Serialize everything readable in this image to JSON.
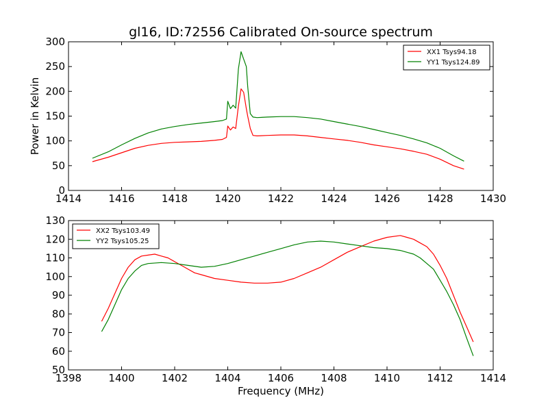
{
  "figure": {
    "title": "gl16, ID:72556 Calibrated On-source spectrum"
  },
  "colors": {
    "xx": "#ff0000",
    "yy": "#008000",
    "axes": "#000000",
    "background": "#ffffff"
  },
  "chart_data": [
    {
      "type": "line",
      "title": "gl16, ID:72556 Calibrated On-source spectrum",
      "xlabel": "",
      "ylabel": "Power in Kelvin",
      "xlim": [
        1414,
        1430
      ],
      "ylim": [
        0,
        300
      ],
      "xticks": [
        "1414",
        "1416",
        "1418",
        "1420",
        "1422",
        "1424",
        "1426",
        "1428",
        "1430"
      ],
      "yticks": [
        "0",
        "50",
        "100",
        "150",
        "200",
        "250",
        "300"
      ],
      "grid": false,
      "legend_position": "top-right",
      "series": [
        {
          "name": "XX1 Tsys94.18",
          "color": "#ff0000",
          "points": [
            [
              1414.9,
              58
            ],
            [
              1415.5,
              67
            ],
            [
              1416.0,
              76
            ],
            [
              1416.5,
              85
            ],
            [
              1417.0,
              91
            ],
            [
              1417.5,
              95
            ],
            [
              1418.0,
              97
            ],
            [
              1418.5,
              98
            ],
            [
              1419.0,
              99
            ],
            [
              1419.5,
              101
            ],
            [
              1419.8,
              103
            ],
            [
              1419.95,
              107
            ],
            [
              1420.0,
              130
            ],
            [
              1420.1,
              122
            ],
            [
              1420.2,
              128
            ],
            [
              1420.3,
              125
            ],
            [
              1420.4,
              170
            ],
            [
              1420.5,
              205
            ],
            [
              1420.6,
              198
            ],
            [
              1420.7,
              165
            ],
            [
              1420.75,
              150
            ],
            [
              1420.85,
              125
            ],
            [
              1420.95,
              111
            ],
            [
              1421.1,
              110
            ],
            [
              1421.5,
              111
            ],
            [
              1422.0,
              112
            ],
            [
              1422.5,
              112
            ],
            [
              1423.0,
              110
            ],
            [
              1423.5,
              107
            ],
            [
              1424.0,
              104
            ],
            [
              1424.5,
              101
            ],
            [
              1425.0,
              97
            ],
            [
              1425.5,
              92
            ],
            [
              1426.0,
              88
            ],
            [
              1426.5,
              84
            ],
            [
              1427.0,
              79
            ],
            [
              1427.5,
              73
            ],
            [
              1428.0,
              63
            ],
            [
              1428.5,
              50
            ],
            [
              1428.9,
              43
            ]
          ]
        },
        {
          "name": "YY1 Tsys124.89",
          "color": "#008000",
          "points": [
            [
              1414.9,
              65
            ],
            [
              1415.5,
              78
            ],
            [
              1416.0,
              92
            ],
            [
              1416.5,
              105
            ],
            [
              1417.0,
              116
            ],
            [
              1417.5,
              124
            ],
            [
              1418.0,
              129
            ],
            [
              1418.5,
              133
            ],
            [
              1419.0,
              136
            ],
            [
              1419.5,
              139
            ],
            [
              1419.8,
              141
            ],
            [
              1419.95,
              144
            ],
            [
              1420.0,
              180
            ],
            [
              1420.1,
              165
            ],
            [
              1420.2,
              172
            ],
            [
              1420.3,
              166
            ],
            [
              1420.4,
              245
            ],
            [
              1420.5,
              280
            ],
            [
              1420.6,
              265
            ],
            [
              1420.7,
              250
            ],
            [
              1420.75,
              210
            ],
            [
              1420.85,
              155
            ],
            [
              1420.95,
              148
            ],
            [
              1421.1,
              147
            ],
            [
              1421.5,
              148
            ],
            [
              1422.0,
              149
            ],
            [
              1422.5,
              149
            ],
            [
              1423.0,
              147
            ],
            [
              1423.5,
              144
            ],
            [
              1424.0,
              139
            ],
            [
              1424.5,
              134
            ],
            [
              1425.0,
              129
            ],
            [
              1425.5,
              123
            ],
            [
              1426.0,
              117
            ],
            [
              1426.5,
              111
            ],
            [
              1427.0,
              104
            ],
            [
              1427.5,
              96
            ],
            [
              1428.0,
              85
            ],
            [
              1428.5,
              70
            ],
            [
              1428.9,
              59
            ]
          ]
        }
      ]
    },
    {
      "type": "line",
      "title": "",
      "xlabel": "Frequency (MHz)",
      "ylabel": "",
      "xlim": [
        1398,
        1414
      ],
      "ylim": [
        50,
        130
      ],
      "xticks": [
        "1398",
        "1400",
        "1402",
        "1404",
        "1406",
        "1408",
        "1410",
        "1412",
        "1414"
      ],
      "yticks": [
        "50",
        "60",
        "70",
        "80",
        "90",
        "100",
        "110",
        "120",
        "130"
      ],
      "grid": false,
      "legend_position": "top-left",
      "series": [
        {
          "name": "XX2 Tsys103.49",
          "color": "#ff0000",
          "points": [
            [
              1399.25,
              76
            ],
            [
              1399.5,
              83
            ],
            [
              1399.75,
              91
            ],
            [
              1400.0,
              99
            ],
            [
              1400.25,
              105
            ],
            [
              1400.5,
              109
            ],
            [
              1400.75,
              111
            ],
            [
              1401.0,
              111.5
            ],
            [
              1401.25,
              112
            ],
            [
              1401.5,
              111
            ],
            [
              1401.75,
              110
            ],
            [
              1402.0,
              108
            ],
            [
              1402.25,
              106
            ],
            [
              1402.5,
              104
            ],
            [
              1402.75,
              102
            ],
            [
              1403.0,
              101
            ],
            [
              1403.5,
              99
            ],
            [
              1404.0,
              98
            ],
            [
              1404.5,
              97
            ],
            [
              1405.0,
              96.5
            ],
            [
              1405.5,
              96.5
            ],
            [
              1406.0,
              97
            ],
            [
              1406.5,
              99
            ],
            [
              1407.0,
              102
            ],
            [
              1407.5,
              105
            ],
            [
              1408.0,
              109
            ],
            [
              1408.5,
              113
            ],
            [
              1409.0,
              116
            ],
            [
              1409.5,
              119
            ],
            [
              1410.0,
              121
            ],
            [
              1410.5,
              122
            ],
            [
              1410.75,
              121
            ],
            [
              1411.0,
              120
            ],
            [
              1411.25,
              118
            ],
            [
              1411.5,
              116
            ],
            [
              1411.75,
              112
            ],
            [
              1412.0,
              106
            ],
            [
              1412.25,
              99
            ],
            [
              1412.5,
              90
            ],
            [
              1412.75,
              81
            ],
            [
              1413.0,
              73
            ],
            [
              1413.25,
              65
            ]
          ]
        },
        {
          "name": "YY2 Tsys105.25",
          "color": "#008000",
          "points": [
            [
              1399.25,
              70.5
            ],
            [
              1399.5,
              77
            ],
            [
              1399.75,
              85
            ],
            [
              1400.0,
              93
            ],
            [
              1400.25,
              99
            ],
            [
              1400.5,
              103
            ],
            [
              1400.75,
              106
            ],
            [
              1401.0,
              107
            ],
            [
              1401.5,
              107.5
            ],
            [
              1402.0,
              107
            ],
            [
              1402.5,
              106
            ],
            [
              1403.0,
              105
            ],
            [
              1403.5,
              105.5
            ],
            [
              1404.0,
              107
            ],
            [
              1404.5,
              109
            ],
            [
              1405.0,
              111
            ],
            [
              1405.5,
              113
            ],
            [
              1406.0,
              115
            ],
            [
              1406.5,
              117
            ],
            [
              1407.0,
              118.5
            ],
            [
              1407.5,
              119
            ],
            [
              1408.0,
              118.5
            ],
            [
              1408.5,
              117.5
            ],
            [
              1409.0,
              116.5
            ],
            [
              1409.5,
              115.5
            ],
            [
              1410.0,
              115
            ],
            [
              1410.5,
              114
            ],
            [
              1410.75,
              113
            ],
            [
              1411.0,
              112
            ],
            [
              1411.25,
              110
            ],
            [
              1411.5,
              107
            ],
            [
              1411.75,
              104
            ],
            [
              1412.0,
              98
            ],
            [
              1412.25,
              92
            ],
            [
              1412.5,
              85
            ],
            [
              1412.75,
              77
            ],
            [
              1413.0,
              67
            ],
            [
              1413.25,
              57.5
            ]
          ]
        }
      ]
    }
  ]
}
